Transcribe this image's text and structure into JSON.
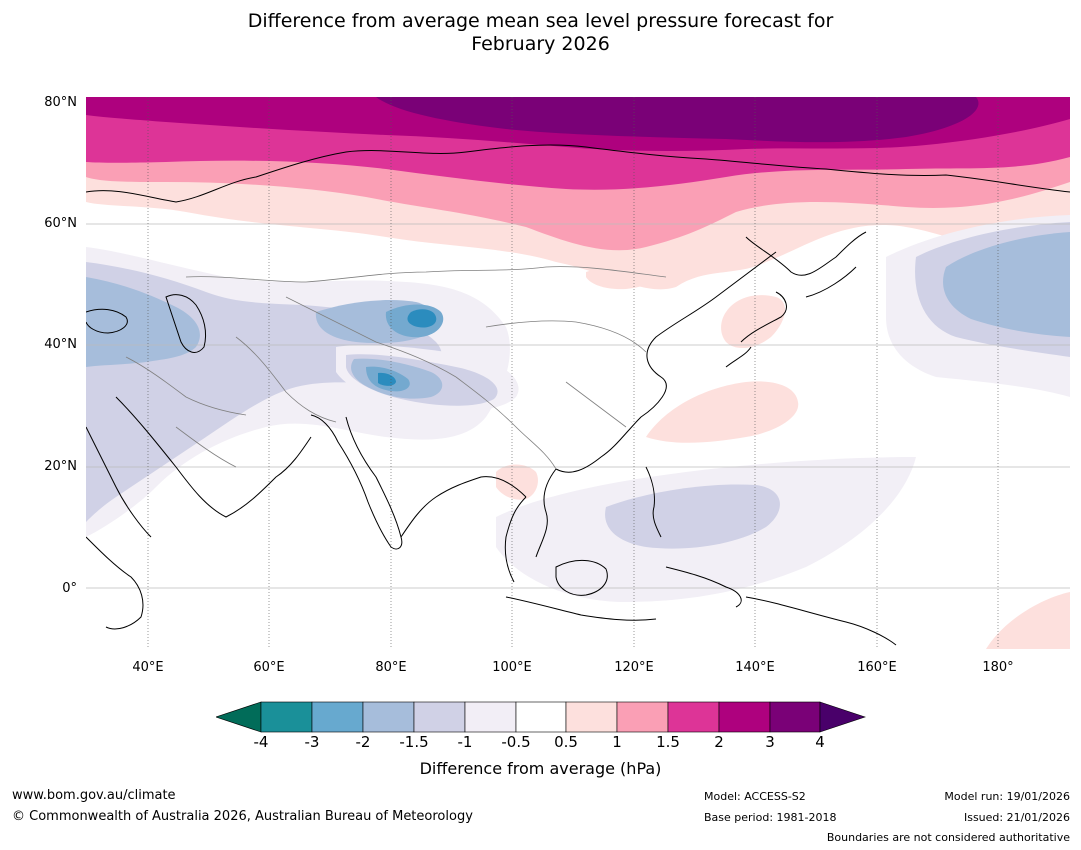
{
  "title_line1": "Difference from average mean sea level pressure forecast for",
  "title_line2": "February 2026",
  "map": {
    "region": "Asia",
    "lat_labels": [
      "80°N",
      "60°N",
      "40°N",
      "20°N",
      "0°"
    ],
    "lon_labels": [
      "40°E",
      "60°E",
      "80°E",
      "100°E",
      "120°E",
      "140°E",
      "160°E",
      "180°"
    ],
    "colors": {
      "strong_pos": "#7a0177",
      "pos_3": "#ae017e",
      "pos_2": "#dd3497",
      "pos_15": "#f768a1",
      "pos_1": "#fa9fb5",
      "pos_05": "#fde0dd",
      "neg_05": "#f2eff6",
      "neg_1": "#d0d1e6",
      "neg_15": "#a6bddb",
      "neg_2": "#74a9cf",
      "neg_3": "#2b8cbe",
      "coast": "#000000",
      "border": "#808080"
    }
  },
  "colorbar": {
    "ticks": [
      "-4",
      "-3",
      "-2",
      "-1.5",
      "-1",
      "-0.5",
      "0.5",
      "1",
      "1.5",
      "2",
      "3",
      "4"
    ],
    "colors": [
      "#1a9099",
      "#67a9cf",
      "#a6bddb",
      "#d0d1e6",
      "#f2eef6",
      "#ffffff",
      "#fde0dd",
      "#fa9fb5",
      "#dd3497",
      "#ae017e",
      "#7a0177"
    ],
    "under_color": "#016c59",
    "over_color": "#49006a",
    "label": "Difference from average (hPa)"
  },
  "footer": {
    "website": "www.bom.gov.au/climate",
    "copyright": "© Commonwealth of Australia 2026, Australian Bureau of Meteorology",
    "model": "Model: ACCESS-S2",
    "base_period": "Base period: 1981-2018",
    "model_run": "Model run: 19/01/2026",
    "issued": "Issued: 21/01/2026",
    "boundaries": "Boundaries are not considered authoritative"
  }
}
